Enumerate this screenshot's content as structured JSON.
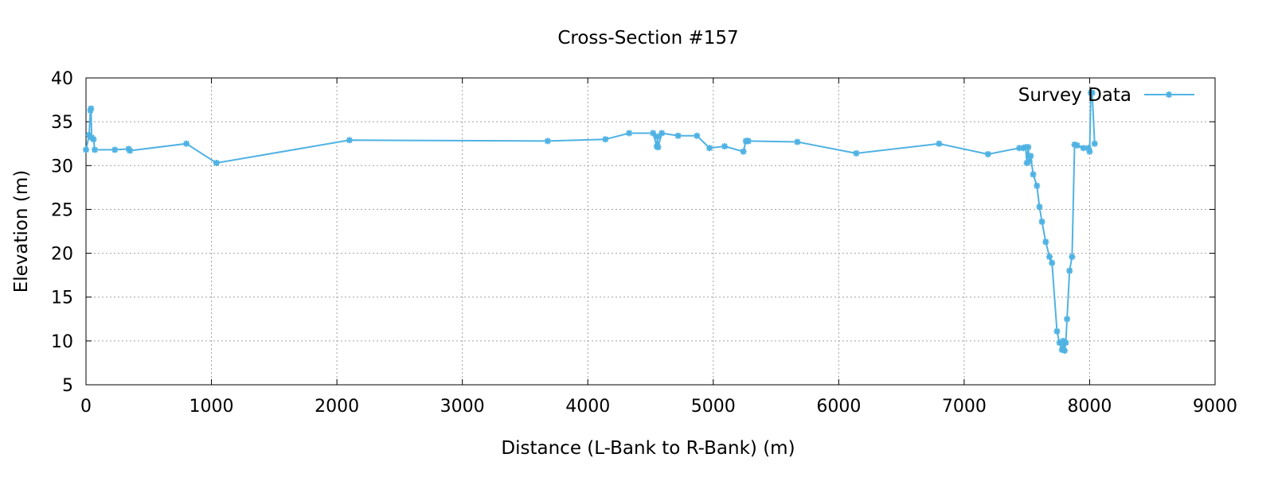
{
  "chart_data": {
    "type": "line",
    "title": "Cross-Section #157",
    "xlabel": "Distance (L-Bank to R-Bank) (m)",
    "ylabel": "Elevation (m)",
    "xlim": [
      0,
      9000
    ],
    "ylim": [
      5,
      40
    ],
    "xticks": [
      0,
      1000,
      2000,
      3000,
      4000,
      5000,
      6000,
      7000,
      8000,
      9000
    ],
    "yticks": [
      5,
      10,
      15,
      20,
      25,
      30,
      35,
      40
    ],
    "grid": true,
    "legend_position": "top-right",
    "series": [
      {
        "name": "Survey Data",
        "color": "#4fb2e3",
        "marker": "asterisk",
        "x": [
          0,
          25,
          35,
          40,
          45,
          60,
          70,
          230,
          340,
          350,
          800,
          1040,
          2100,
          3680,
          4140,
          4330,
          4520,
          4550,
          4555,
          4560,
          4590,
          4720,
          4870,
          4970,
          5090,
          5240,
          5260,
          5270,
          5280,
          5670,
          6140,
          6800,
          7190,
          7440,
          7470,
          7490,
          7500,
          7510,
          7520,
          7530,
          7550,
          7580,
          7600,
          7620,
          7650,
          7680,
          7700,
          7740,
          7760,
          7780,
          7790,
          7800,
          7810,
          7820,
          7840,
          7860,
          7880,
          7900,
          7950,
          7990,
          8000,
          8010,
          8020,
          8040
        ],
        "y": [
          31.8,
          33.5,
          36.3,
          36.5,
          33.2,
          33.0,
          31.8,
          31.8,
          31.9,
          31.7,
          32.5,
          30.3,
          32.9,
          32.8,
          33.0,
          33.7,
          33.7,
          32.2,
          33.3,
          32.1,
          33.7,
          33.4,
          33.4,
          32.0,
          32.2,
          31.6,
          32.8,
          32.8,
          32.8,
          32.7,
          31.4,
          32.5,
          31.3,
          32.0,
          32.0,
          32.1,
          30.3,
          32.1,
          30.5,
          31.1,
          29.0,
          27.7,
          25.3,
          23.6,
          21.3,
          19.6,
          18.9,
          11.1,
          9.8,
          9.0,
          10.0,
          8.9,
          9.8,
          12.5,
          18.0,
          19.6,
          32.4,
          32.3,
          32.0,
          32.0,
          31.6,
          38.3,
          38.3,
          32.5
        ]
      }
    ]
  }
}
